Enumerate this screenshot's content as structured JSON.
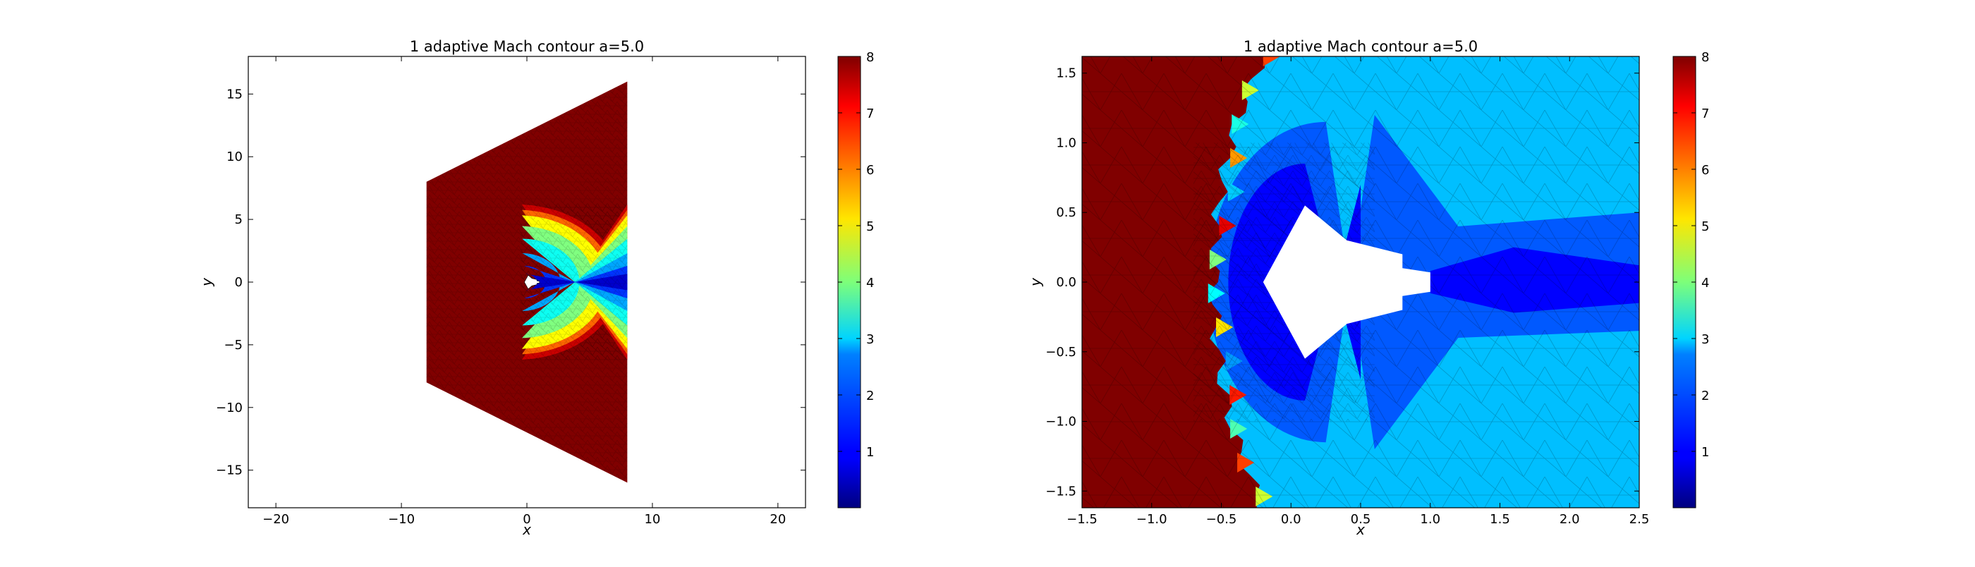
{
  "chart_data": [
    {
      "type": "heatmap",
      "title": "1 adaptive Mach contour a=5.0",
      "xlabel": "x",
      "ylabel": "y",
      "xlim": [
        -22.2,
        22.2
      ],
      "ylim": [
        -18,
        18
      ],
      "xticks": [
        "−20",
        "−10",
        "0",
        "10",
        "20"
      ],
      "xtick_values": [
        -20,
        -10,
        0,
        10,
        20
      ],
      "yticks": [
        "−15",
        "−10",
        "−5",
        "0",
        "5",
        "10",
        "15"
      ],
      "ytick_values": [
        -15,
        -10,
        -5,
        0,
        5,
        10,
        15
      ],
      "domain_outline": [
        [
          -8,
          8
        ],
        [
          8,
          16
        ],
        [
          8,
          -16
        ],
        [
          -8,
          -8
        ]
      ],
      "freestream_mach": 8,
      "colorbar": {
        "colormap": "jet",
        "range": [
          0,
          8
        ],
        "ticks": [
          "1",
          "2",
          "3",
          "4",
          "5",
          "6",
          "7",
          "8"
        ],
        "tick_values": [
          1,
          2,
          3,
          4,
          5,
          6,
          7,
          8
        ]
      },
      "grid": false
    },
    {
      "type": "heatmap",
      "title": "1 adaptive Mach contour a=5.0",
      "xlabel": "x",
      "ylabel": "y",
      "xlim": [
        -1.5,
        2.5
      ],
      "ylim": [
        -1.62,
        1.62
      ],
      "xticks": [
        "−1.5",
        "−1.0",
        "−0.5",
        "0.0",
        "0.5",
        "1.0",
        "1.5",
        "2.0",
        "2.5"
      ],
      "xtick_values": [
        -1.5,
        -1.0,
        -0.5,
        0.0,
        0.5,
        1.0,
        1.5,
        2.0,
        2.5
      ],
      "yticks": [
        "−1.5",
        "−1.0",
        "−0.5",
        "0.0",
        "0.5",
        "1.0",
        "1.5"
      ],
      "ytick_values": [
        -1.5,
        -1.0,
        -0.5,
        0.0,
        0.5,
        1.0,
        1.5
      ],
      "body_outline": [
        [
          -0.2,
          0
        ],
        [
          0.1,
          0.55
        ],
        [
          0.4,
          0.3
        ],
        [
          0.8,
          0.2
        ],
        [
          0.8,
          0.1
        ],
        [
          1.0,
          0.07
        ],
        [
          1.0,
          -0.07
        ],
        [
          0.8,
          -0.1
        ],
        [
          0.8,
          -0.2
        ],
        [
          0.4,
          -0.3
        ],
        [
          0.1,
          -0.55
        ]
      ],
      "shock_x_approx": -0.55,
      "colorbar": {
        "colormap": "jet",
        "range": [
          0,
          8
        ],
        "ticks": [
          "1",
          "2",
          "3",
          "4",
          "5",
          "6",
          "7",
          "8"
        ],
        "tick_values": [
          1,
          2,
          3,
          4,
          5,
          6,
          7,
          8
        ]
      },
      "grid": false
    }
  ]
}
